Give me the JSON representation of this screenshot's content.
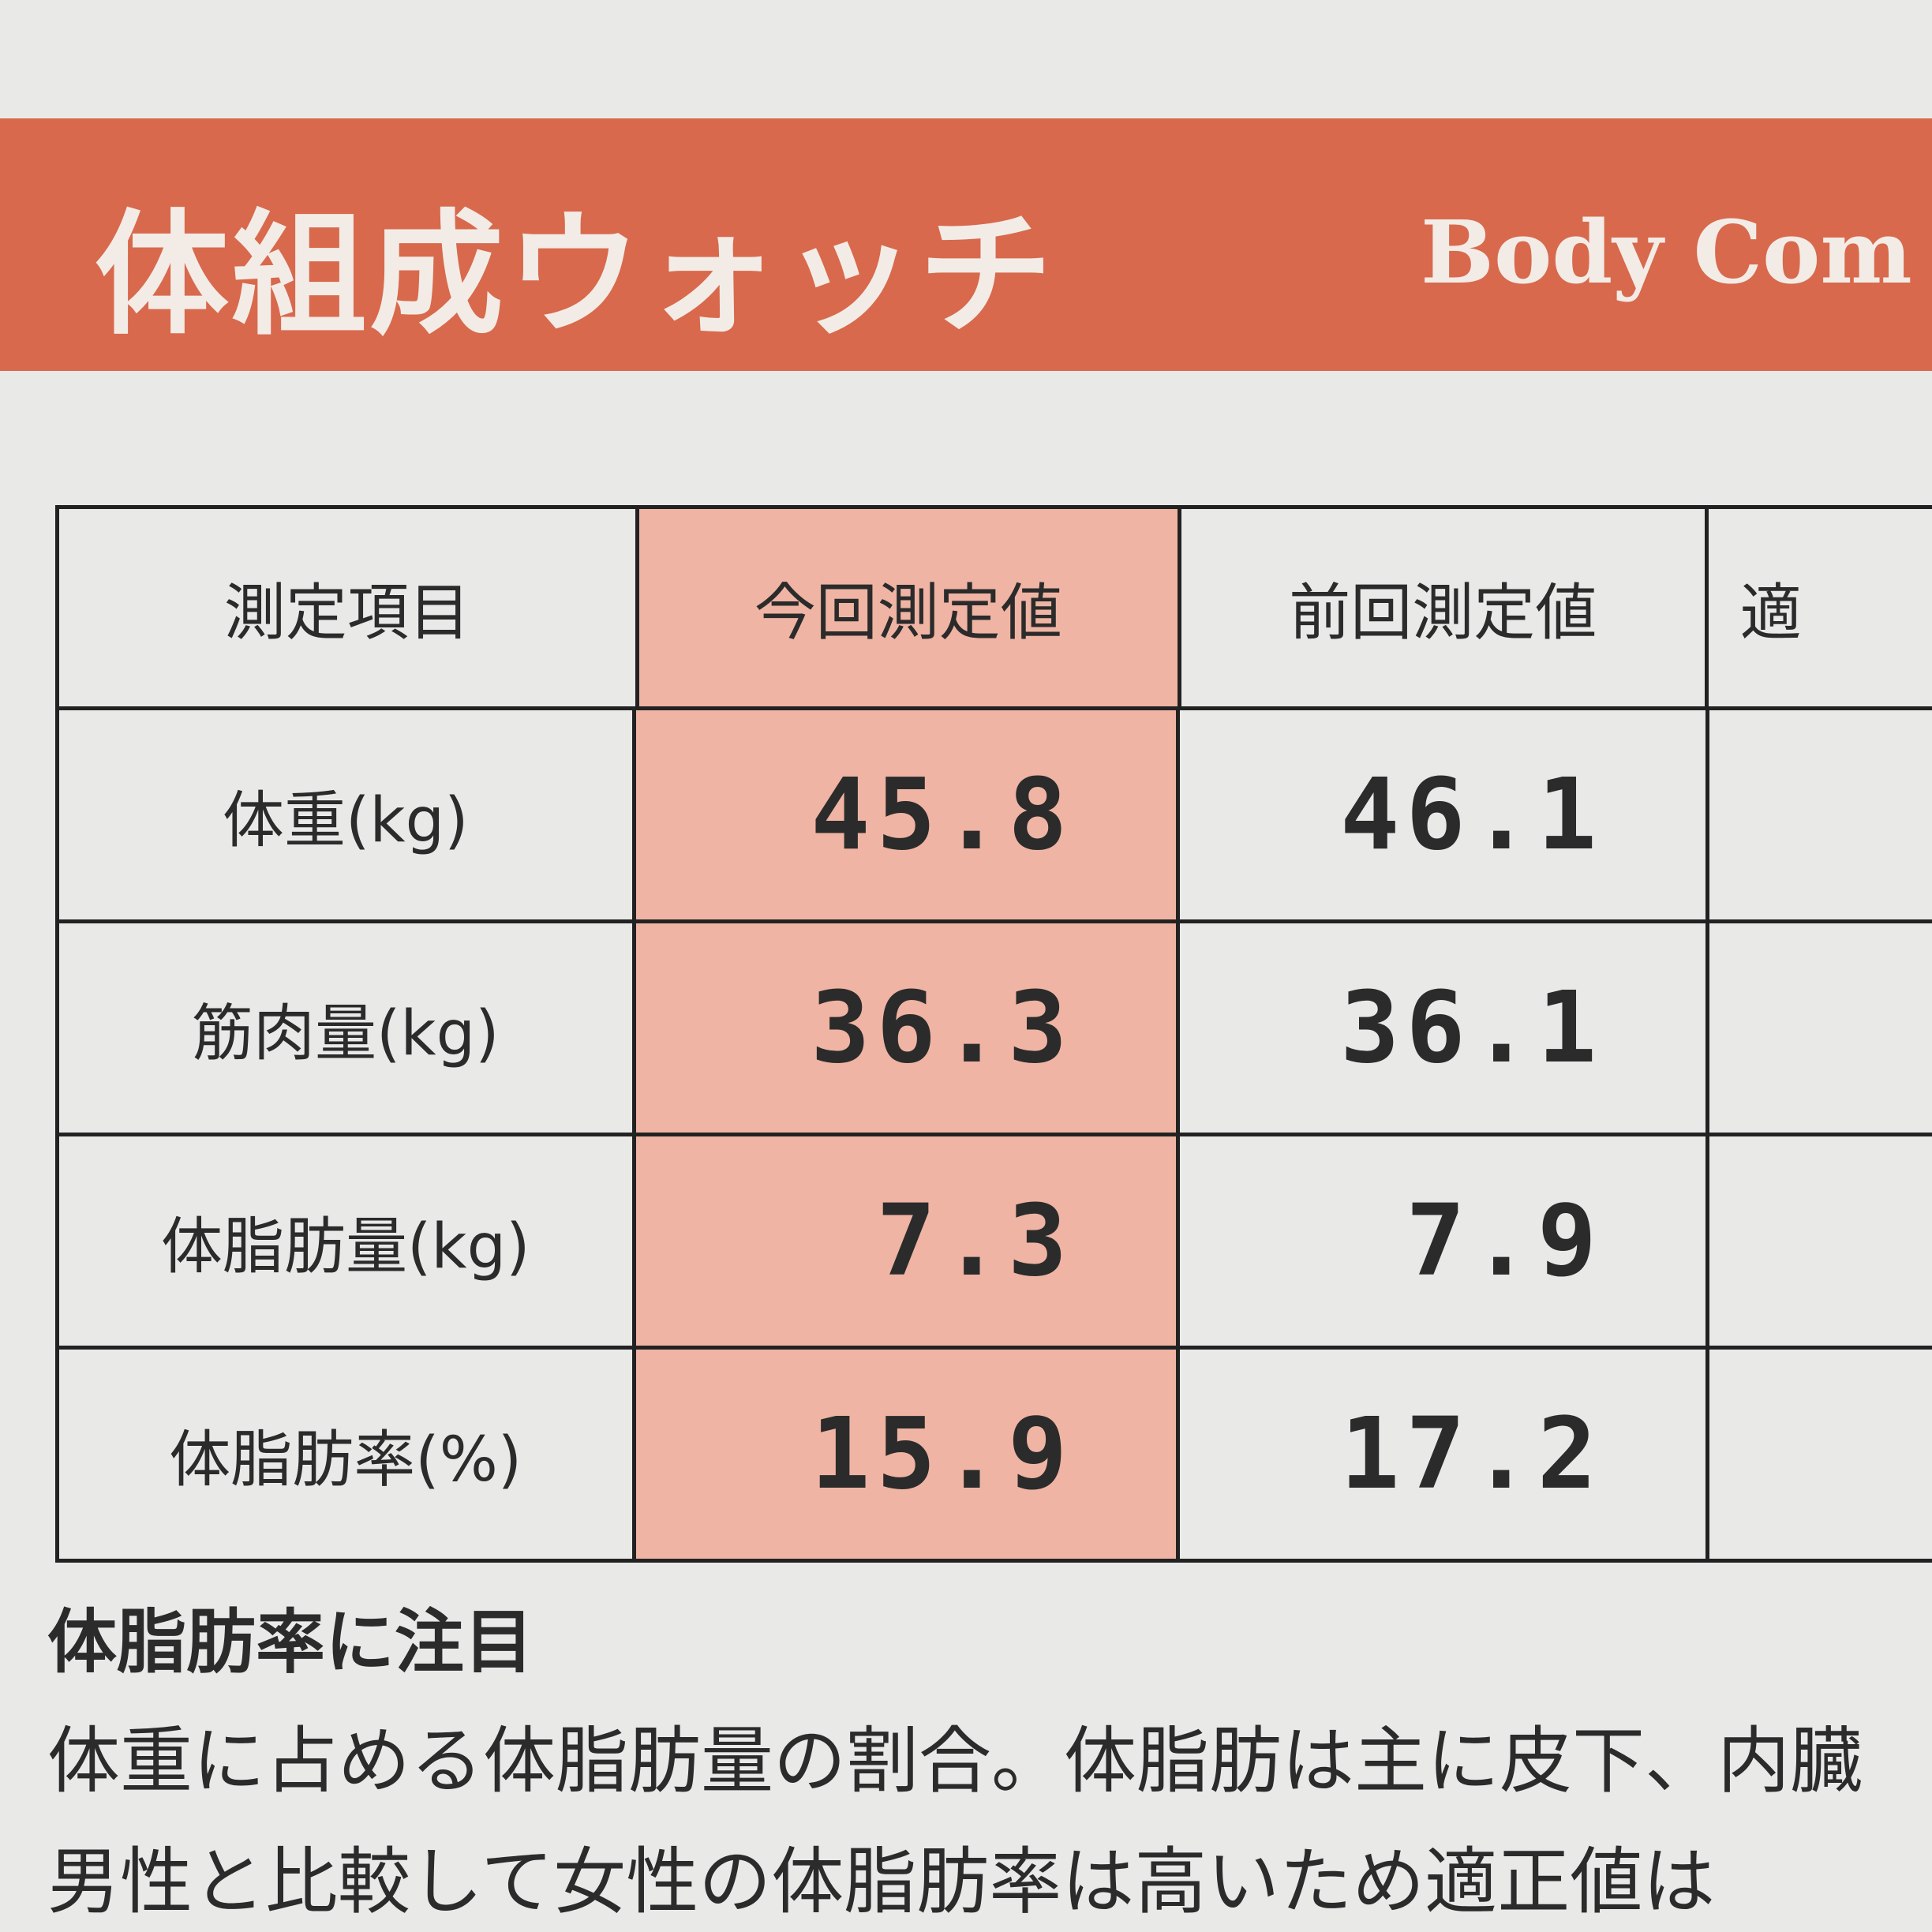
{
  "header": {
    "title": "体組成ウォッチ",
    "subtitle": "Body Com"
  },
  "table": {
    "columns": [
      "測定項目",
      "今回測定値",
      "前回測定値",
      "適"
    ],
    "rows": [
      [
        "体重(kg)",
        45.8,
        46.1
      ],
      [
        "筋肉量(kg)",
        36.3,
        36.1
      ],
      [
        "体脂肪量(kg)",
        7.3,
        7.9
      ],
      [
        "体脂肪率(%)",
        15.9,
        17.2
      ]
    ]
  },
  "note": {
    "heading": "体脂肪率に注目",
    "lines": [
      "体重に占める体脂肪量の割合。体脂肪は主に皮下、内臓",
      "男性と比較して女性の体脂肪率は高いため適正値は"
    ]
  }
}
